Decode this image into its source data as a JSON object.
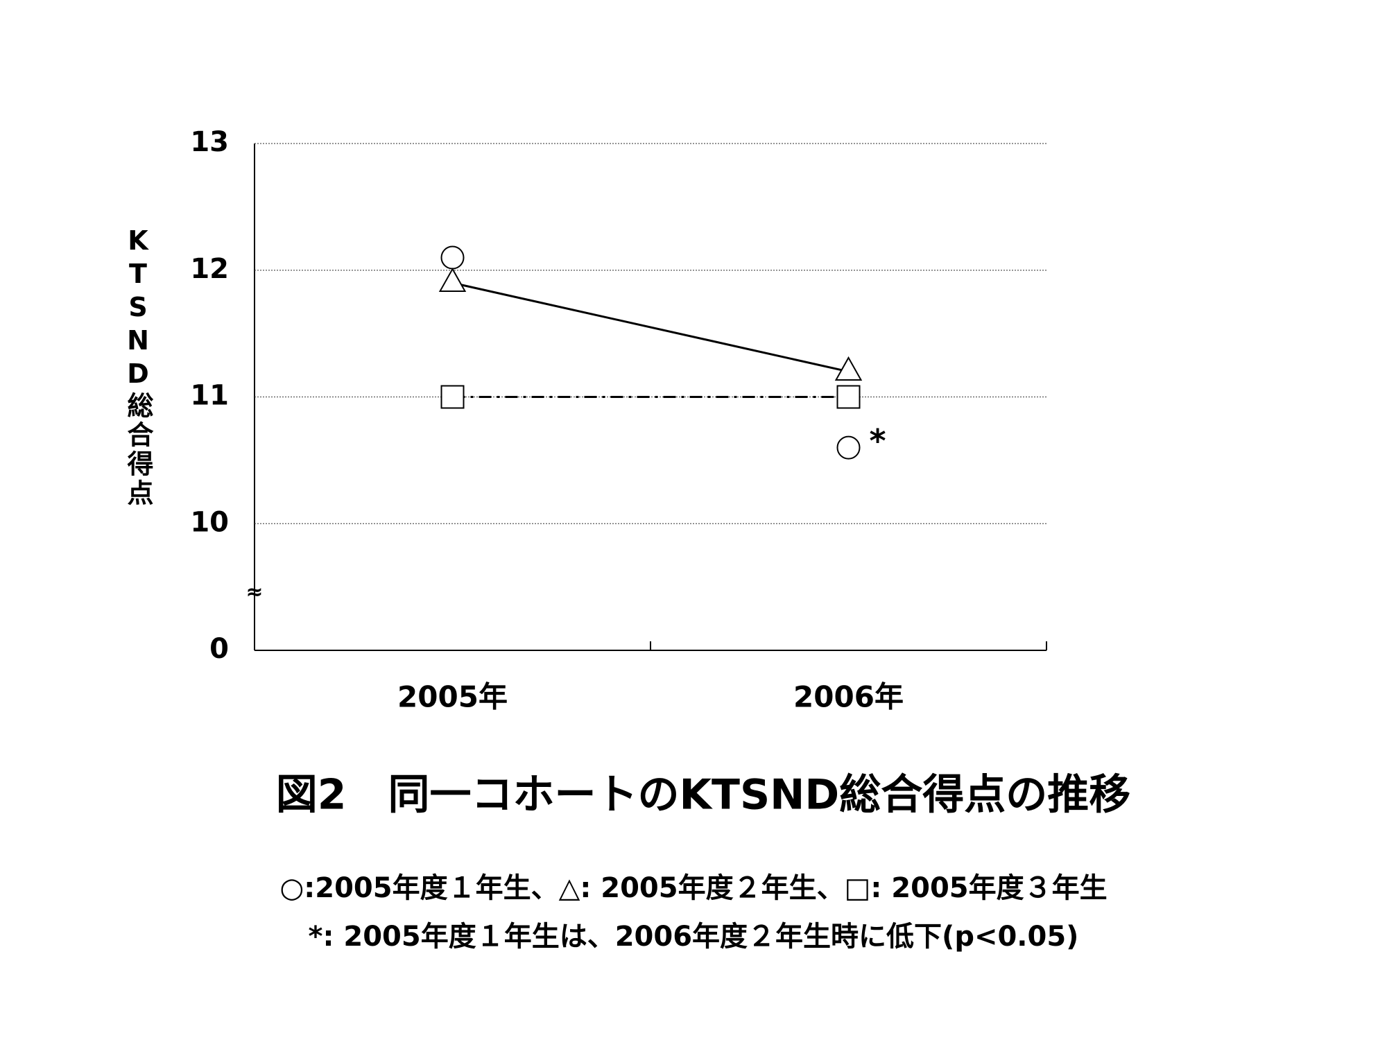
{
  "chart_data": {
    "type": "line",
    "title": "図2　同一コホートのKTSND総合得点の推移",
    "y_label": "KTSND総合得点",
    "categories": [
      "2005年",
      "2006年"
    ],
    "series": [
      {
        "marker": "circle",
        "line": "none",
        "color": "#000000",
        "values": [
          12.1,
          10.6
        ]
      },
      {
        "marker": "triangle",
        "line": "solid",
        "color": "#000000",
        "values": [
          11.9,
          11.2
        ]
      },
      {
        "marker": "square",
        "line": "dashdot",
        "color": "#000000",
        "values": [
          11.0,
          11.0
        ]
      }
    ],
    "annotation": "*",
    "ylim": [
      0,
      13
    ],
    "yticks": [
      0,
      10,
      11,
      12,
      13
    ],
    "axis_break": true,
    "grid": true,
    "notes": [
      "○:2005年度１年生、△: 2005年度２年生、□: 2005年度３年生",
      "*: 2005年度１年生は、2006年度２年生時に低下(p<0.05)"
    ]
  }
}
